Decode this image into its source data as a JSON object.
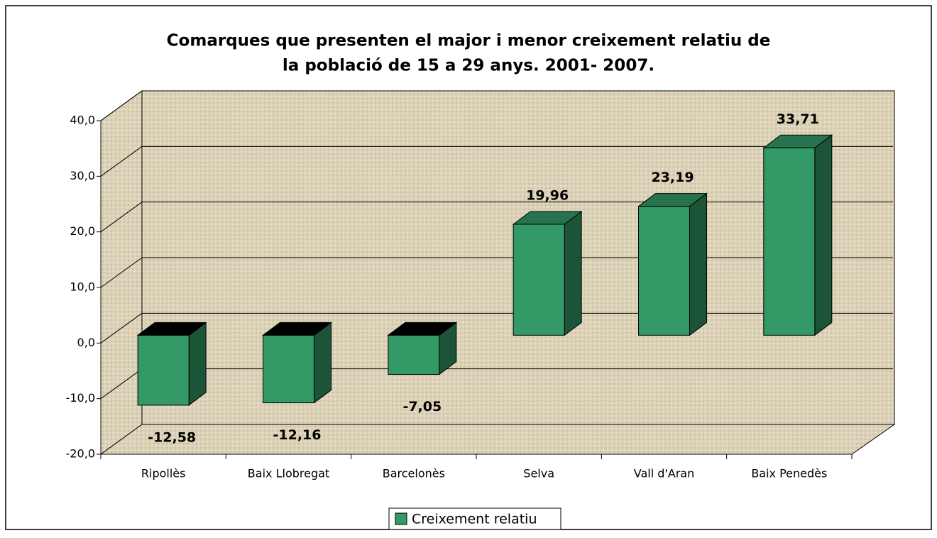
{
  "chart_data": {
    "type": "bar3d",
    "title": [
      "Comarques que presenten el major i menor creixement relatiu de",
      "la població de 15 a 29 anys. 2001- 2007."
    ],
    "categories": [
      "Ripollès",
      "Baix Llobregat",
      "Barcelonès",
      "Selva",
      "Vall d'Aran",
      "Baix Penedès"
    ],
    "series": [
      {
        "name": "Creixement relatiu",
        "color": "#339966",
        "values": [
          -12.58,
          -12.16,
          -7.05,
          19.96,
          23.19,
          33.71
        ],
        "value_labels": [
          "-12,58",
          "-12,16",
          "-7,05",
          "19,96",
          "23,19",
          "33,71"
        ]
      }
    ],
    "ylim": [
      -20,
      40
    ],
    "yticks": [
      {
        "value": -20,
        "label": "-20,0"
      },
      {
        "value": -10,
        "label": "-10,0"
      },
      {
        "value": 0,
        "label": "0,0"
      },
      {
        "value": 10,
        "label": "10,0"
      },
      {
        "value": 20,
        "label": "20,0"
      },
      {
        "value": 30,
        "label": "30,0"
      },
      {
        "value": 40,
        "label": "40,0"
      }
    ],
    "grid": true,
    "legend": "bottom"
  }
}
